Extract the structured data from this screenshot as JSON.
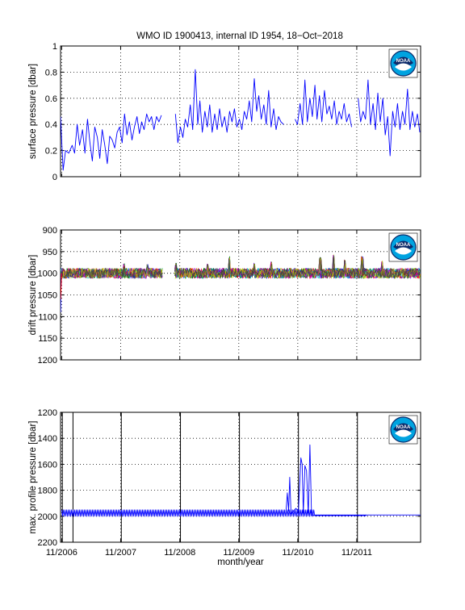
{
  "figure": {
    "title": "WMO ID 1900413, internal ID 1954, 18−Oct−2018",
    "xlabel": "month/year",
    "x_tick_labels": [
      "11/2006",
      "11/2007",
      "11/2008",
      "11/2009",
      "11/2010",
      "11/2011"
    ],
    "logo_text": "NOAA"
  },
  "colors": {
    "line": "#0000ff",
    "axis": "#000000",
    "grid": "#000000",
    "drift_palette": [
      "#0000ff",
      "#008000",
      "#ff0000",
      "#00bfbf",
      "#bf00bf",
      "#bfbf00",
      "#404040"
    ]
  },
  "chart_data": [
    {
      "type": "line",
      "ylabel": "surface pressure [dbar]",
      "ylim": [
        0,
        1
      ],
      "y_ticks": [
        "0",
        "0.2",
        "0.4",
        "0.6",
        "0.8",
        "1"
      ],
      "y_reversed": false,
      "x_range": [
        "2006-10-25",
        "2012-11-30"
      ],
      "grid": true,
      "series": [
        {
          "values": [
            [
              "2006-10-25",
              0.46
            ],
            [
              "2006-11-10",
              0.05
            ],
            [
              "2006-11-25",
              0.2
            ],
            [
              "2006-12-15",
              0.18
            ],
            [
              "2007-01-05",
              0.24
            ],
            [
              "2007-01-20",
              0.18
            ],
            [
              "2007-02-05",
              0.4
            ],
            [
              "2007-02-20",
              0.24
            ],
            [
              "2007-03-10",
              0.36
            ],
            [
              "2007-03-25",
              0.18
            ],
            [
              "2007-04-10",
              0.44
            ],
            [
              "2007-04-25",
              0.26
            ],
            [
              "2007-05-10",
              0.12
            ],
            [
              "2007-05-25",
              0.38
            ],
            [
              "2007-06-10",
              0.3
            ],
            [
              "2007-06-25",
              0.14
            ],
            [
              "2007-07-10",
              0.36
            ],
            [
              "2007-07-25",
              0.25
            ],
            [
              "2007-08-10",
              0.1
            ],
            [
              "2007-08-25",
              0.31
            ],
            [
              "2007-09-10",
              0.28
            ],
            [
              "2007-09-25",
              0.22
            ],
            [
              "2007-10-10",
              0.34
            ],
            [
              "2007-10-25",
              0.38
            ],
            [
              "2007-11-10",
              0.26
            ],
            [
              "2007-11-25",
              0.48
            ],
            [
              "2007-12-10",
              0.32
            ],
            [
              "2007-12-25",
              0.42
            ],
            [
              "2008-01-10",
              0.28
            ],
            [
              "2008-01-25",
              0.38
            ],
            [
              "2008-02-10",
              0.46
            ],
            [
              "2008-02-25",
              0.33
            ],
            [
              "2008-03-10",
              0.42
            ],
            [
              "2008-03-25",
              0.36
            ],
            [
              "2008-04-10",
              0.48
            ],
            [
              "2008-04-25",
              0.42
            ],
            [
              "2008-05-10",
              0.46
            ],
            [
              "2008-05-25",
              0.36
            ],
            [
              "2008-06-10",
              0.46
            ],
            [
              "2008-06-25",
              0.42
            ],
            [
              "2008-07-10",
              0.47
            ],
            null,
            [
              "2008-10-05",
              0.48
            ],
            [
              "2008-10-20",
              0.26
            ],
            [
              "2008-11-05",
              0.38
            ],
            [
              "2008-11-20",
              0.3
            ],
            [
              "2008-12-05",
              0.44
            ],
            [
              "2008-12-20",
              0.38
            ],
            [
              "2009-01-05",
              0.55
            ],
            [
              "2009-01-20",
              0.36
            ],
            [
              "2009-02-05",
              0.82
            ],
            [
              "2009-02-20",
              0.4
            ],
            [
              "2009-03-05",
              0.58
            ],
            [
              "2009-03-20",
              0.34
            ],
            [
              "2009-04-05",
              0.5
            ],
            [
              "2009-04-20",
              0.38
            ],
            [
              "2009-05-05",
              0.55
            ],
            [
              "2009-05-20",
              0.34
            ],
            [
              "2009-06-05",
              0.48
            ],
            [
              "2009-06-20",
              0.36
            ],
            [
              "2009-07-05",
              0.52
            ],
            [
              "2009-07-20",
              0.38
            ],
            [
              "2009-08-05",
              0.46
            ],
            [
              "2009-08-20",
              0.34
            ],
            [
              "2009-09-05",
              0.5
            ],
            [
              "2009-09-20",
              0.42
            ],
            [
              "2009-10-05",
              0.52
            ],
            [
              "2009-10-20",
              0.38
            ],
            [
              "2009-11-05",
              0.44
            ],
            [
              "2009-11-20",
              0.36
            ],
            [
              "2009-12-05",
              0.5
            ],
            [
              "2009-12-20",
              0.44
            ],
            [
              "2010-01-05",
              0.58
            ],
            [
              "2010-01-20",
              0.42
            ],
            [
              "2010-02-05",
              0.75
            ],
            [
              "2010-02-20",
              0.5
            ],
            [
              "2010-03-05",
              0.62
            ],
            [
              "2010-03-20",
              0.44
            ],
            [
              "2010-04-05",
              0.55
            ],
            [
              "2010-04-20",
              0.4
            ],
            [
              "2010-05-05",
              0.66
            ],
            [
              "2010-05-20",
              0.38
            ],
            [
              "2010-06-05",
              0.52
            ],
            [
              "2010-06-20",
              0.36
            ],
            [
              "2010-07-05",
              0.46
            ],
            [
              "2010-07-20",
              0.42
            ],
            [
              "2010-08-05",
              0.4
            ],
            null,
            [
              "2010-10-15",
              0.44
            ],
            [
              "2010-10-30",
              0.4
            ],
            [
              "2010-11-15",
              0.56
            ],
            [
              "2010-11-30",
              0.4
            ],
            [
              "2010-12-15",
              0.74
            ],
            [
              "2010-12-30",
              0.42
            ],
            [
              "2011-01-15",
              0.6
            ],
            [
              "2011-01-30",
              0.46
            ],
            [
              "2011-02-15",
              0.7
            ],
            [
              "2011-02-28",
              0.44
            ],
            [
              "2011-03-15",
              0.62
            ],
            [
              "2011-03-30",
              0.42
            ],
            [
              "2011-04-15",
              0.66
            ],
            [
              "2011-04-30",
              0.48
            ],
            [
              "2011-05-15",
              0.54
            ],
            [
              "2011-05-30",
              0.44
            ],
            [
              "2011-06-15",
              0.58
            ],
            [
              "2011-06-30",
              0.4
            ],
            [
              "2011-07-15",
              0.5
            ],
            [
              "2011-07-30",
              0.44
            ],
            [
              "2011-08-15",
              0.56
            ],
            [
              "2011-08-30",
              0.42
            ],
            [
              "2011-09-15",
              0.48
            ],
            [
              "2011-09-30",
              0.38
            ],
            null,
            [
              "2011-11-10",
              0.6
            ],
            [
              "2011-11-25",
              0.42
            ],
            [
              "2011-12-10",
              0.5
            ],
            [
              "2011-12-25",
              0.44
            ],
            [
              "2012-01-10",
              0.74
            ],
            [
              "2012-01-25",
              0.4
            ],
            [
              "2012-02-10",
              0.56
            ],
            [
              "2012-02-25",
              0.36
            ],
            [
              "2012-03-10",
              0.64
            ],
            [
              "2012-03-25",
              0.42
            ],
            [
              "2012-04-10",
              0.6
            ],
            [
              "2012-04-25",
              0.32
            ],
            [
              "2012-05-10",
              0.46
            ],
            [
              "2012-05-25",
              0.16
            ],
            [
              "2012-06-10",
              0.5
            ],
            [
              "2012-06-25",
              0.38
            ],
            [
              "2012-07-10",
              0.56
            ],
            [
              "2012-07-25",
              0.36
            ],
            [
              "2012-08-10",
              0.5
            ],
            [
              "2012-08-25",
              0.4
            ],
            [
              "2012-09-10",
              0.67
            ],
            [
              "2012-09-25",
              0.36
            ],
            [
              "2012-10-10",
              0.5
            ],
            [
              "2012-10-25",
              0.38
            ],
            [
              "2012-11-10",
              0.48
            ],
            [
              "2012-11-25",
              0.34
            ]
          ]
        }
      ]
    },
    {
      "type": "line",
      "ylabel": "drift pressure [dbar]",
      "ylim": [
        900,
        1200
      ],
      "y_ticks": [
        "900",
        "950",
        "1000",
        "1050",
        "1100",
        "1150",
        "1200"
      ],
      "y_reversed": true,
      "x_range": [
        "2006-10-25",
        "2012-11-30"
      ],
      "grid": true,
      "drift_band": {
        "center": 1000,
        "typical_spread": 12,
        "segments": [
          [
            "2006-10-25",
            "2008-07-20"
          ],
          [
            "2008-10-01",
            "2012-11-30"
          ]
        ],
        "initial_spike_max": 1090,
        "spikes": [
          [
            "2007-11-20",
            982
          ],
          [
            "2008-04-15",
            984
          ],
          [
            "2008-10-10",
            981
          ],
          [
            "2009-04-20",
            983
          ],
          [
            "2009-09-05",
            966
          ],
          [
            "2010-02-05",
            980
          ],
          [
            "2010-05-20",
            978
          ],
          [
            "2011-03-20",
            968
          ],
          [
            "2011-06-10",
            962
          ],
          [
            "2011-08-20",
            974
          ],
          [
            "2011-12-05",
            966
          ],
          [
            "2012-04-05",
            976
          ]
        ]
      }
    },
    {
      "type": "line",
      "ylabel": "max. profile pressure [dbar]",
      "ylim": [
        1200,
        2200
      ],
      "y_ticks": [
        "1200",
        "1400",
        "1600",
        "1800",
        "2000",
        "2200"
      ],
      "y_reversed": true,
      "x_range": [
        "2006-10-25",
        "2012-11-30"
      ],
      "grid": true,
      "vertical_markers": [
        "2006-11-05",
        "2007-01-10",
        "2007-11-05",
        "2008-11-05",
        "2009-11-05",
        "2010-11-05",
        "2011-11-05"
      ],
      "baseline": {
        "center": 1975,
        "oscillation": 25,
        "from": "2006-11-01",
        "to": "2012-11-30"
      },
      "series": [
        {
          "values": [
            [
              "2010-08-20",
              1960
            ],
            [
              "2010-08-28",
              1820
            ],
            [
              "2010-09-05",
              1960
            ],
            [
              "2010-09-12",
              1700
            ],
            [
              "2010-09-20",
              1980
            ],
            [
              "2010-10-05",
              1960
            ],
            [
              "2010-10-20",
              1940
            ],
            [
              "2010-11-05",
              1960
            ],
            [
              "2010-11-20",
              1550
            ],
            [
              "2010-11-28",
              1600
            ],
            [
              "2010-12-05",
              1980
            ],
            [
              "2010-12-15",
              1610
            ],
            [
              "2010-12-25",
              1650
            ],
            [
              "2011-01-05",
              1990
            ],
            [
              "2011-01-15",
              1450
            ],
            [
              "2011-01-25",
              1990
            ],
            [
              "2011-02-15",
              1995
            ],
            [
              "2011-12-31",
              1995
            ]
          ]
        }
      ]
    }
  ]
}
